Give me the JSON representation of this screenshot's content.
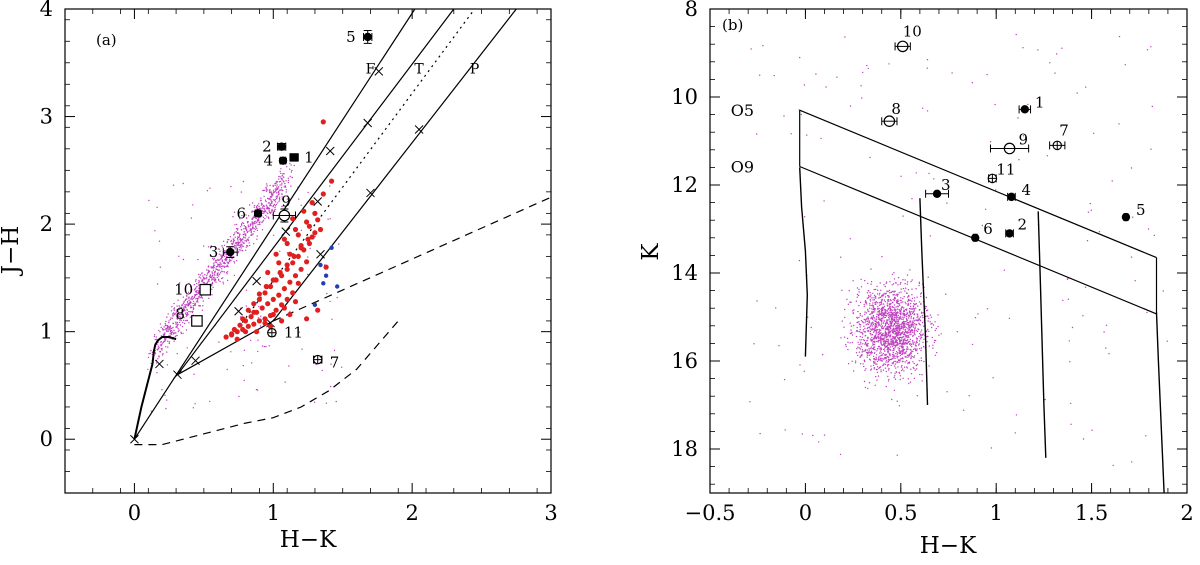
{
  "chart_data": [
    {
      "panel": "(a)",
      "type": "scatter",
      "xlabel": "H−K",
      "ylabel": "J−H",
      "xlim": [
        -0.5,
        3.0
      ],
      "ylim": [
        -0.5,
        4.0
      ],
      "x_ticks": [
        0,
        1,
        2,
        3
      ],
      "y_ticks": [
        0,
        1,
        2,
        3,
        4
      ],
      "x_tick_labels": [
        "0",
        "1",
        "2",
        "3"
      ],
      "y_tick_labels": [
        "0",
        "1",
        "2",
        "3",
        "4"
      ],
      "reddening_band_labels": [
        "F",
        "T",
        "P"
      ],
      "reddening_band_label_positions": [
        [
          1.7,
          3.4
        ],
        [
          2.05,
          3.4
        ],
        [
          2.45,
          3.4
        ]
      ],
      "colors": {
        "field": "#c040c0",
        "red_sources": "#e02020",
        "blue_sources": "#2040b0",
        "marked": "#000000"
      },
      "reddening_vectors": [
        {
          "x": [
            0.0,
            2.02
          ],
          "y": [
            0.0,
            4.0
          ]
        },
        {
          "x": [
            0.31,
            2.3
          ],
          "y": [
            0.6,
            4.0
          ]
        },
        {
          "x": [
            0.7,
            2.45
          ],
          "y": [
            0.95,
            4.0
          ],
          "style": "dotted"
        },
        {
          "x": [
            1.0,
            2.75
          ],
          "y": [
            1.1,
            4.0
          ]
        }
      ],
      "reddening_markers": [
        {
          "x": [
            0.44,
            0.88,
            1.32,
            1.68
          ],
          "y": [
            0.73,
            1.47,
            2.21,
            2.94
          ],
          "note": "x markers on leftmost vector"
        },
        {
          "x": [
            0.75,
            1.09,
            1.41,
            1.76
          ],
          "y": [
            1.19,
            1.93,
            2.68,
            3.42
          ],
          "note": "x markers on second vector"
        },
        {
          "x": [
            1.34,
            1.7,
            2.05
          ],
          "y": [
            1.72,
            2.29,
            2.88
          ],
          "note": "x markers on rightmost vector"
        }
      ],
      "main_sequence": {
        "x": [
          0.0,
          0.05,
          0.1,
          0.13,
          0.14,
          0.15,
          0.17,
          0.2,
          0.25,
          0.3
        ],
        "y": [
          0.0,
          0.3,
          0.55,
          0.7,
          0.82,
          0.88,
          0.92,
          0.95,
          0.95,
          0.93
        ]
      },
      "ctts_locus": {
        "x": [
          0.31,
          1.0
        ],
        "y": [
          0.6,
          1.1
        ],
        "style": "dashed"
      },
      "upper_dashed": {
        "x": [
          1.0,
          3.0
        ],
        "y": [
          1.1,
          2.25
        ],
        "style": "dashed"
      },
      "lower_dashed": {
        "x": [
          0.0,
          0.2,
          0.5,
          0.8,
          1.0,
          1.2,
          1.4,
          1.6,
          1.8,
          1.9
        ],
        "y": [
          -0.05,
          -0.05,
          0.05,
          0.15,
          0.2,
          0.3,
          0.45,
          0.65,
          0.95,
          1.1
        ],
        "style": "dashed"
      },
      "red_sources": {
        "x": [
          0.66,
          0.7,
          0.74,
          0.78,
          0.82,
          0.86,
          0.9,
          0.94,
          0.98,
          1.02,
          1.06,
          1.1,
          1.14,
          1.18,
          0.72,
          0.76,
          0.8,
          0.84,
          0.88,
          0.92,
          0.96,
          1.0,
          1.04,
          1.08,
          1.12,
          1.16,
          1.2,
          1.24,
          0.82,
          0.86,
          0.9,
          0.94,
          0.98,
          1.02,
          1.06,
          1.1,
          1.14,
          1.18,
          1.22,
          1.26,
          0.9,
          0.95,
          1.0,
          1.05,
          1.1,
          1.15,
          1.2,
          1.25,
          1.3,
          0.96,
          1.04,
          1.12,
          1.2,
          1.28,
          1.34,
          1.02,
          1.1,
          1.18,
          1.26,
          1.32,
          1.08,
          1.16,
          1.24,
          1.3,
          1.14,
          1.22,
          1.28,
          1.36,
          0.78,
          0.86,
          0.94,
          1.0,
          1.08,
          1.16,
          1.24,
          1.32,
          1.38,
          1.42,
          1.36,
          0.7,
          0.74,
          0.8,
          0.88,
          0.98,
          1.06,
          1.12
        ],
        "y": [
          0.95,
          0.97,
          1.0,
          1.02,
          1.05,
          1.07,
          1.1,
          1.12,
          1.15,
          1.2,
          1.25,
          1.3,
          1.36,
          1.45,
          1.02,
          1.06,
          1.1,
          1.14,
          1.18,
          1.22,
          1.26,
          1.3,
          1.34,
          1.4,
          1.46,
          1.52,
          1.58,
          1.65,
          1.2,
          1.26,
          1.3,
          1.36,
          1.42,
          1.48,
          1.52,
          1.58,
          1.64,
          1.7,
          1.76,
          1.82,
          1.35,
          1.42,
          1.48,
          1.55,
          1.62,
          1.7,
          1.78,
          1.86,
          1.92,
          1.55,
          1.64,
          1.72,
          1.8,
          1.88,
          1.95,
          1.72,
          1.82,
          1.9,
          1.98,
          2.04,
          1.86,
          1.95,
          2.02,
          2.1,
          2.05,
          2.12,
          2.2,
          2.28,
          1.12,
          1.18,
          1.08,
          1.16,
          1.22,
          1.28,
          1.12,
          1.2,
          1.6,
          2.4,
          2.95,
          0.98,
          0.93,
          1.0,
          1.0,
          1.05,
          1.1,
          1.16
        ]
      },
      "blue_sources": {
        "x": [
          1.3,
          1.36,
          1.38,
          1.42,
          1.46,
          1.34
        ],
        "y": [
          1.25,
          1.45,
          1.52,
          1.78,
          1.42,
          1.62
        ]
      },
      "marked_stars": [
        {
          "label": "1",
          "x": 1.15,
          "y": 2.62,
          "symbol": "filled-square",
          "xerr": 0.03,
          "yerr": 0.03
        },
        {
          "label": "2",
          "x": 1.06,
          "y": 2.72,
          "symbol": "filled-circle",
          "xerr": 0.03,
          "yerr": 0.03
        },
        {
          "label": "3",
          "x": 0.69,
          "y": 1.74,
          "symbol": "filled-circle",
          "xerr": 0.05,
          "yerr": 0.05
        },
        {
          "label": "4",
          "x": 1.07,
          "y": 2.59,
          "symbol": "filled-circle",
          "xerr": 0.02,
          "yerr": 0.02
        },
        {
          "label": "5",
          "x": 1.68,
          "y": 3.74,
          "symbol": "filled-circle",
          "xerr": 0.03,
          "yerr": 0.06
        },
        {
          "label": "6",
          "x": 0.89,
          "y": 2.1,
          "symbol": "filled-circle",
          "xerr": 0.02,
          "yerr": 0.02
        },
        {
          "label": "7",
          "x": 1.32,
          "y": 0.74,
          "symbol": "crossed-circle",
          "xerr": 0.03,
          "yerr": 0.03
        },
        {
          "label": "8",
          "x": 0.45,
          "y": 1.1,
          "symbol": "open-square",
          "xerr": 0.02,
          "yerr": 0.02
        },
        {
          "label": "9",
          "x": 1.08,
          "y": 2.08,
          "symbol": "open-circle",
          "xerr": 0.08,
          "yerr": 0.06
        },
        {
          "label": "10",
          "x": 0.51,
          "y": 1.39,
          "symbol": "open-square",
          "xerr": 0.02,
          "yerr": 0.02
        },
        {
          "label": "11",
          "x": 0.99,
          "y": 0.99,
          "symbol": "crossed-circle",
          "xerr": 0.02,
          "yerr": 0.02
        }
      ]
    },
    {
      "panel": "(b)",
      "type": "scatter",
      "xlabel": "H−K",
      "ylabel": "K",
      "xlim": [
        -0.5,
        2.0
      ],
      "ylim": [
        19.0,
        8.0
      ],
      "x_ticks": [
        -0.5,
        0,
        0.5,
        1,
        1.5,
        2
      ],
      "y_ticks": [
        8,
        10,
        12,
        14,
        16,
        18
      ],
      "x_tick_labels": [
        "−0.5",
        "0",
        "0.5",
        "1",
        "1.5",
        "2"
      ],
      "y_tick_labels": [
        "8",
        "10",
        "12",
        "14",
        "16",
        "18"
      ],
      "spectral_type_labels": [
        "O5",
        "O9"
      ],
      "colors": {
        "field": "#c040c0",
        "marked": "#000000"
      },
      "o5_reddening_line": {
        "x": [
          -0.03,
          1.84
        ],
        "y": [
          10.3,
          13.65
        ]
      },
      "o9_reddening_line": {
        "x": [
          -0.03,
          1.84
        ],
        "y": [
          11.58,
          14.93
        ]
      },
      "right_closing_line": {
        "x": [
          1.84,
          1.84
        ],
        "y": [
          13.65,
          14.93
        ]
      },
      "left_closing_line": {
        "x": [
          -0.03,
          -0.03
        ],
        "y": [
          10.3,
          11.58
        ]
      },
      "isochrones": [
        {
          "x": [
            -0.03,
            -0.02,
            0.0,
            0.01,
            0.0
          ],
          "y": [
            11.6,
            12.5,
            13.5,
            14.5,
            15.9
          ]
        },
        {
          "x": [
            0.6,
            0.61,
            0.62,
            0.63,
            0.64
          ],
          "y": [
            12.3,
            13.5,
            14.5,
            15.5,
            17.0
          ]
        },
        {
          "x": [
            1.22,
            1.23,
            1.24,
            1.25,
            1.26
          ],
          "y": [
            12.6,
            14.0,
            15.5,
            17.0,
            18.2
          ]
        },
        {
          "x": [
            1.84,
            1.85,
            1.86,
            1.87,
            1.88
          ],
          "y": [
            14.9,
            16.0,
            17.0,
            18.0,
            19.0
          ]
        }
      ],
      "marked_stars": [
        {
          "label": "1",
          "x": 1.15,
          "y": 10.28,
          "symbol": "filled-circle",
          "xerr": 0.03
        },
        {
          "label": "2",
          "x": 1.07,
          "y": 13.1,
          "symbol": "filled-circle",
          "xerr": 0.02
        },
        {
          "label": "3",
          "x": 0.69,
          "y": 12.2,
          "symbol": "filled-circle",
          "xerr": 0.06
        },
        {
          "label": "4",
          "x": 1.08,
          "y": 12.27,
          "symbol": "filled-circle",
          "xerr": 0.02
        },
        {
          "label": "5",
          "x": 1.68,
          "y": 12.73,
          "symbol": "filled-circle",
          "xerr": 0.01
        },
        {
          "label": "6",
          "x": 0.89,
          "y": 13.2,
          "symbol": "filled-circle",
          "xerr": 0.01
        },
        {
          "label": "7",
          "x": 1.32,
          "y": 11.1,
          "symbol": "crossed-circle",
          "xerr": 0.04
        },
        {
          "label": "8",
          "x": 0.44,
          "y": 10.55,
          "symbol": "open-circle",
          "xerr": 0.04
        },
        {
          "label": "9",
          "x": 1.07,
          "y": 11.17,
          "symbol": "open-circle",
          "xerr": 0.1
        },
        {
          "label": "10",
          "x": 0.51,
          "y": 8.85,
          "symbol": "open-circle",
          "xerr": 0.04
        },
        {
          "label": "11",
          "x": 0.98,
          "y": 11.85,
          "symbol": "crossed-circle",
          "xerr": 0.02
        }
      ]
    }
  ]
}
